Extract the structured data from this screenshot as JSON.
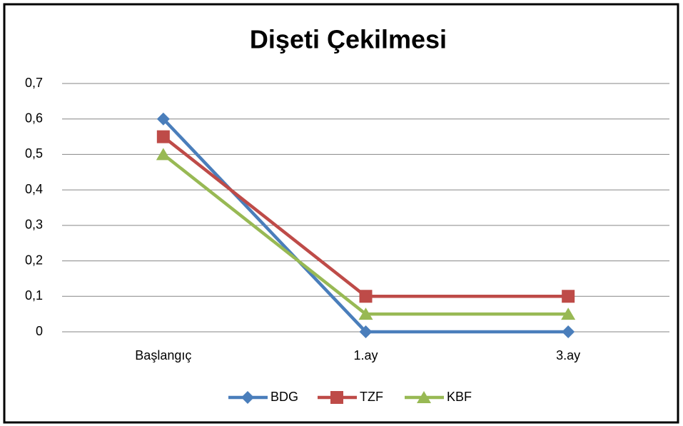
{
  "chart_data": {
    "type": "line",
    "title": "Dişeti Çekilmesi",
    "categories": [
      "Başlangıç",
      "1.ay",
      "3.ay"
    ],
    "series": [
      {
        "name": "BDG",
        "color": "#4a7ebb",
        "marker": "diamond",
        "values": [
          0.6,
          0,
          0
        ]
      },
      {
        "name": "TZF",
        "color": "#be4b48",
        "marker": "square",
        "values": [
          0.55,
          0.1,
          0.1
        ]
      },
      {
        "name": "KBF",
        "color": "#98b954",
        "marker": "triangle",
        "values": [
          0.5,
          0.05,
          0.05
        ]
      }
    ],
    "ylim": [
      0,
      0.7
    ],
    "yticks": [
      0,
      {
        "value": 0.1,
        "label": "0,1"
      },
      {
        "value": 0.2,
        "label": "0,2"
      },
      {
        "value": 0.3,
        "label": "0,3"
      },
      {
        "value": 0.4,
        "label": "0,4"
      },
      {
        "value": 0.5,
        "label": "0,5"
      },
      {
        "value": 0.6,
        "label": "0,6"
      },
      {
        "value": 0.7,
        "label": "0,7"
      }
    ],
    "grid": true,
    "legend": "bottom"
  }
}
